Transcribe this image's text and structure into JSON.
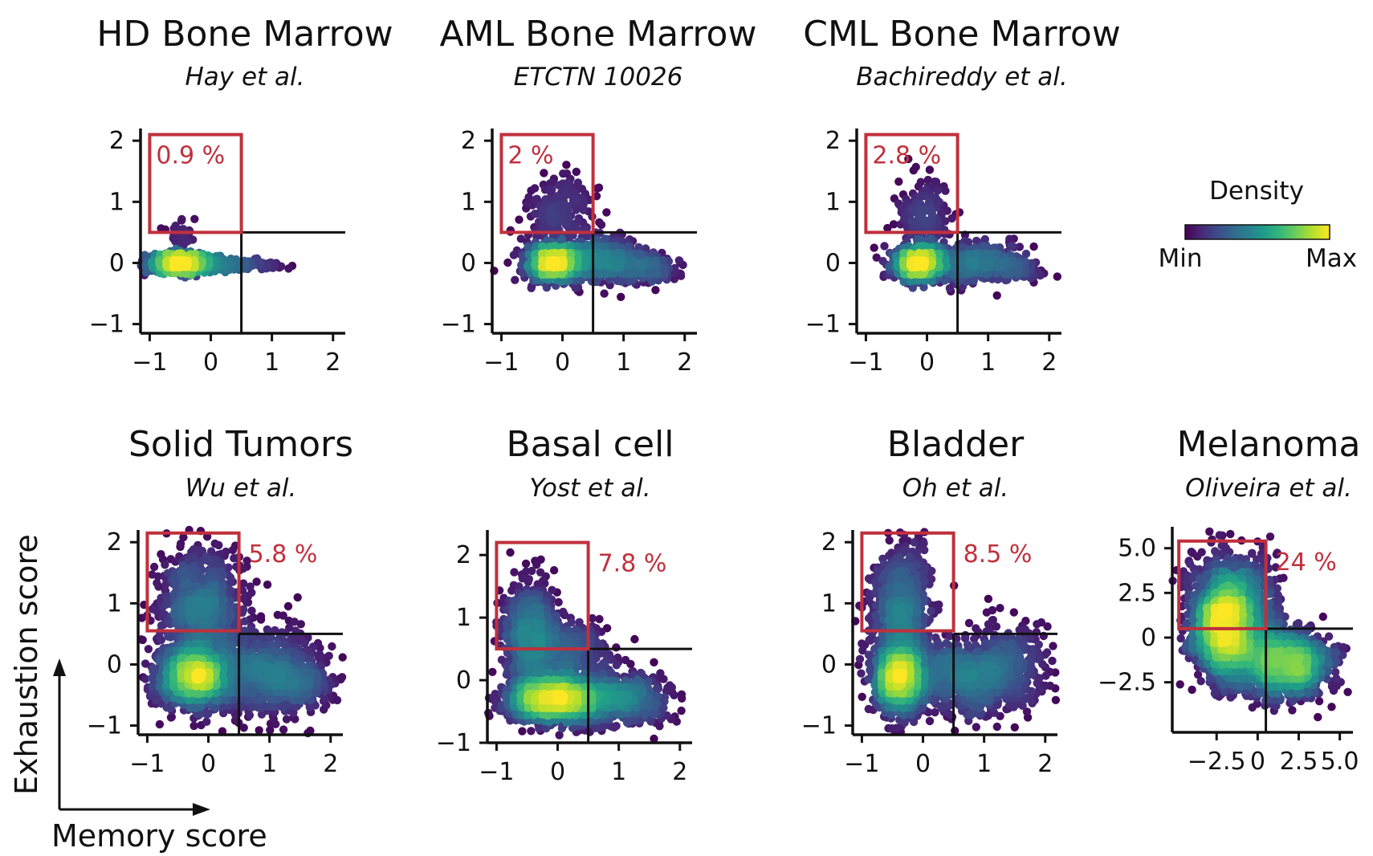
{
  "colors": {
    "axis": "#111111",
    "gate_line": "#111111",
    "gate_box": "#c0303c",
    "pct_text": "#c0303c",
    "viridis": [
      "#440154",
      "#482878",
      "#3e4a89",
      "#31688e",
      "#26828e",
      "#1f9e89",
      "#35b779",
      "#6ece58",
      "#b5de2b",
      "#fde725"
    ]
  },
  "legend": {
    "title": "Density",
    "min_label": "Min",
    "max_label": "Max"
  },
  "axis_labels": {
    "x": "Memory score",
    "y": "Exhaustion score"
  },
  "chart_data": [
    {
      "type": "scatter",
      "title": "HD Bone Marrow",
      "subtitle": "Hay et al.",
      "xlim": [
        -1.15,
        2.2
      ],
      "ylim": [
        -1.15,
        2.2
      ],
      "xticks": [
        {
          "v": -1,
          "label": "−1"
        },
        {
          "v": 0,
          "label": "0"
        },
        {
          "v": 1,
          "label": "1"
        },
        {
          "v": 2,
          "label": "2"
        }
      ],
      "yticks": [
        {
          "v": 2,
          "label": "2"
        },
        {
          "v": 1,
          "label": "1"
        },
        {
          "v": 0,
          "label": "0"
        },
        {
          "v": -1,
          "label": "−1"
        }
      ],
      "gate": {
        "x": 0.5,
        "y": 0.5
      },
      "box": {
        "x0": -1.0,
        "x1": 0.5,
        "y0": 0.5,
        "y1": 2.1
      },
      "percent": "0.9 %",
      "percent_pos": "inside",
      "clusters": [
        {
          "cx": -0.5,
          "cy": 0.0,
          "sx": 0.3,
          "sy": 0.07,
          "n": 900
        },
        {
          "cx": 0.35,
          "cy": -0.03,
          "sx": 0.38,
          "sy": 0.04,
          "n": 260
        },
        {
          "cx": -0.5,
          "cy": 0.5,
          "sx": 0.15,
          "sy": 0.14,
          "n": 28
        }
      ]
    },
    {
      "type": "scatter",
      "title": "AML Bone Marrow",
      "subtitle": "ETCTN 10026",
      "xlim": [
        -1.15,
        2.2
      ],
      "ylim": [
        -1.15,
        2.2
      ],
      "xticks": [
        {
          "v": -1,
          "label": "−1"
        },
        {
          "v": 0,
          "label": "0"
        },
        {
          "v": 1,
          "label": "1"
        },
        {
          "v": 2,
          "label": "2"
        }
      ],
      "yticks": [
        {
          "v": 2,
          "label": "2"
        },
        {
          "v": 1,
          "label": "1"
        },
        {
          "v": 0,
          "label": "0"
        },
        {
          "v": -1,
          "label": "−1"
        }
      ],
      "gate": {
        "x": 0.5,
        "y": 0.5
      },
      "box": {
        "x0": -1.0,
        "x1": 0.5,
        "y0": 0.5,
        "y1": 2.1
      },
      "percent": "2 %",
      "percent_pos": "inside",
      "clusters": [
        {
          "cx": -0.15,
          "cy": 0.0,
          "sx": 0.22,
          "sy": 0.14,
          "n": 900
        },
        {
          "cx": 0.6,
          "cy": 0.05,
          "sx": 0.45,
          "sy": 0.18,
          "n": 650
        },
        {
          "cx": 1.4,
          "cy": -0.1,
          "sx": 0.3,
          "sy": 0.1,
          "n": 170
        },
        {
          "cx": -0.05,
          "cy": 0.85,
          "sx": 0.28,
          "sy": 0.3,
          "n": 200
        }
      ]
    },
    {
      "type": "scatter",
      "title": "CML Bone Marrow",
      "subtitle": "Bachireddy et al.",
      "xlim": [
        -1.15,
        2.2
      ],
      "ylim": [
        -1.15,
        2.2
      ],
      "xticks": [
        {
          "v": -1,
          "label": "−1"
        },
        {
          "v": 0,
          "label": "0"
        },
        {
          "v": 1,
          "label": "1"
        },
        {
          "v": 2,
          "label": "2"
        }
      ],
      "yticks": [
        {
          "v": 2,
          "label": "2"
        },
        {
          "v": 1,
          "label": "1"
        },
        {
          "v": 0,
          "label": "0"
        },
        {
          "v": -1,
          "label": "−1"
        }
      ],
      "gate": {
        "x": 0.5,
        "y": 0.5
      },
      "box": {
        "x0": -1.0,
        "x1": 0.5,
        "y0": 0.5,
        "y1": 2.1
      },
      "percent": "2.8 %",
      "percent_pos": "inside",
      "clusters": [
        {
          "cx": -0.15,
          "cy": 0.0,
          "sx": 0.22,
          "sy": 0.14,
          "n": 800
        },
        {
          "cx": 0.7,
          "cy": 0.0,
          "sx": 0.45,
          "sy": 0.16,
          "n": 520
        },
        {
          "cx": 1.45,
          "cy": -0.1,
          "sx": 0.25,
          "sy": 0.08,
          "n": 90
        },
        {
          "cx": -0.05,
          "cy": 0.8,
          "sx": 0.22,
          "sy": 0.28,
          "n": 170
        }
      ]
    },
    {
      "type": "scatter",
      "title": "Solid Tumors",
      "subtitle": "Wu et al.",
      "xlim": [
        -1.15,
        2.2
      ],
      "ylim": [
        -1.15,
        2.2
      ],
      "xticks": [
        {
          "v": -1,
          "label": "−1"
        },
        {
          "v": 0,
          "label": "0"
        },
        {
          "v": 1,
          "label": "1"
        },
        {
          "v": 2,
          "label": "2"
        }
      ],
      "yticks": [
        {
          "v": 2,
          "label": "2"
        },
        {
          "v": 1,
          "label": "1"
        },
        {
          "v": 0,
          "label": "0"
        },
        {
          "v": -1,
          "label": "−1"
        }
      ],
      "gate": {
        "x": 0.5,
        "y": 0.5
      },
      "box": {
        "x0": -1.0,
        "x1": 0.5,
        "y0": 0.55,
        "y1": 2.15
      },
      "percent": "5.8 %",
      "percent_pos": "outside",
      "clusters": [
        {
          "cx": -0.25,
          "cy": -0.2,
          "sx": 0.3,
          "sy": 0.25,
          "n": 1200
        },
        {
          "cx": -0.15,
          "cy": 0.9,
          "sx": 0.35,
          "sy": 0.5,
          "n": 900
        },
        {
          "cx": 0.8,
          "cy": -0.1,
          "sx": 0.55,
          "sy": 0.35,
          "n": 900
        },
        {
          "cx": 1.5,
          "cy": -0.3,
          "sx": 0.3,
          "sy": 0.15,
          "n": 160
        }
      ]
    },
    {
      "type": "scatter",
      "title": "Basal cell",
      "subtitle": "Yost et al.",
      "xlim": [
        -1.15,
        2.2
      ],
      "ylim": [
        -1.0,
        2.4
      ],
      "xticks": [
        {
          "v": -1,
          "label": "−1"
        },
        {
          "v": 0,
          "label": "0"
        },
        {
          "v": 1,
          "label": "1"
        },
        {
          "v": 2,
          "label": "2"
        }
      ],
      "yticks": [
        {
          "v": 2,
          "label": "2"
        },
        {
          "v": 1,
          "label": "1"
        },
        {
          "v": 0,
          "label": "0"
        },
        {
          "v": -1,
          "label": "−1"
        }
      ],
      "gate": {
        "x": 0.5,
        "y": 0.5
      },
      "box": {
        "x0": -1.0,
        "x1": 0.5,
        "y0": 0.5,
        "y1": 2.2
      },
      "percent": "7.8 %",
      "percent_pos": "outside",
      "clusters": [
        {
          "cx": -0.05,
          "cy": -0.3,
          "sx": 0.4,
          "sy": 0.18,
          "n": 1500
        },
        {
          "cx": 1.0,
          "cy": -0.3,
          "sx": 0.4,
          "sy": 0.2,
          "n": 600
        },
        {
          "cx": -0.45,
          "cy": 0.7,
          "sx": 0.22,
          "sy": 0.45,
          "n": 700
        },
        {
          "cx": 0.2,
          "cy": 0.4,
          "sx": 0.35,
          "sy": 0.3,
          "n": 400
        }
      ]
    },
    {
      "type": "scatter",
      "title": "Bladder",
      "subtitle": "Oh et al.",
      "xlim": [
        -1.15,
        2.2
      ],
      "ylim": [
        -1.15,
        2.2
      ],
      "xticks": [
        {
          "v": -1,
          "label": "−1"
        },
        {
          "v": 0,
          "label": "0"
        },
        {
          "v": 1,
          "label": "1"
        },
        {
          "v": 2,
          "label": "2"
        }
      ],
      "yticks": [
        {
          "v": 2,
          "label": "2"
        },
        {
          "v": 1,
          "label": "1"
        },
        {
          "v": 0,
          "label": "0"
        },
        {
          "v": -1,
          "label": "−1"
        }
      ],
      "gate": {
        "x": 0.5,
        "y": 0.5
      },
      "box": {
        "x0": -1.0,
        "x1": 0.5,
        "y0": 0.55,
        "y1": 2.15
      },
      "percent": "8.5 %",
      "percent_pos": "outside",
      "clusters": [
        {
          "cx": -0.4,
          "cy": -0.2,
          "sx": 0.2,
          "sy": 0.3,
          "n": 1000
        },
        {
          "cx": -0.35,
          "cy": 0.9,
          "sx": 0.25,
          "sy": 0.55,
          "n": 700
        },
        {
          "cx": 0.6,
          "cy": -0.2,
          "sx": 0.5,
          "sy": 0.3,
          "n": 800
        },
        {
          "cx": 1.4,
          "cy": 0.0,
          "sx": 0.35,
          "sy": 0.35,
          "n": 300
        }
      ]
    },
    {
      "type": "scatter",
      "title": "Melanoma",
      "subtitle": "Oliveira et al.",
      "xlim": [
        -5.2,
        5.8
      ],
      "ylim": [
        -5.3,
        6.2
      ],
      "xticks": [
        {
          "v": -2.5,
          "label": "−2.5"
        },
        {
          "v": 0,
          "label": "0"
        },
        {
          "v": 2.5,
          "label": "2.5"
        },
        {
          "v": 5.0,
          "label": "5.0"
        }
      ],
      "yticks": [
        {
          "v": 5.0,
          "label": "5.0"
        },
        {
          "v": 2.5,
          "label": "2.5"
        },
        {
          "v": 0,
          "label": "0"
        },
        {
          "v": -2.5,
          "label": "−2.5"
        }
      ],
      "gate": {
        "x": 0.5,
        "y": 0.5
      },
      "box": {
        "x0": -4.8,
        "x1": 0.5,
        "y0": 0.5,
        "y1": 5.4
      },
      "percent": "24 %",
      "percent_pos": "outside",
      "clusters": [
        {
          "cx": -2.0,
          "cy": 0.3,
          "sx": 1.0,
          "sy": 1.3,
          "n": 1400
        },
        {
          "cx": 1.0,
          "cy": -1.3,
          "sx": 1.5,
          "sy": 1.0,
          "n": 1100
        },
        {
          "cx": -1.5,
          "cy": 2.2,
          "sx": 1.3,
          "sy": 1.3,
          "n": 800
        },
        {
          "cx": 2.5,
          "cy": -1.5,
          "sx": 1.0,
          "sy": 0.8,
          "n": 350
        }
      ]
    }
  ]
}
